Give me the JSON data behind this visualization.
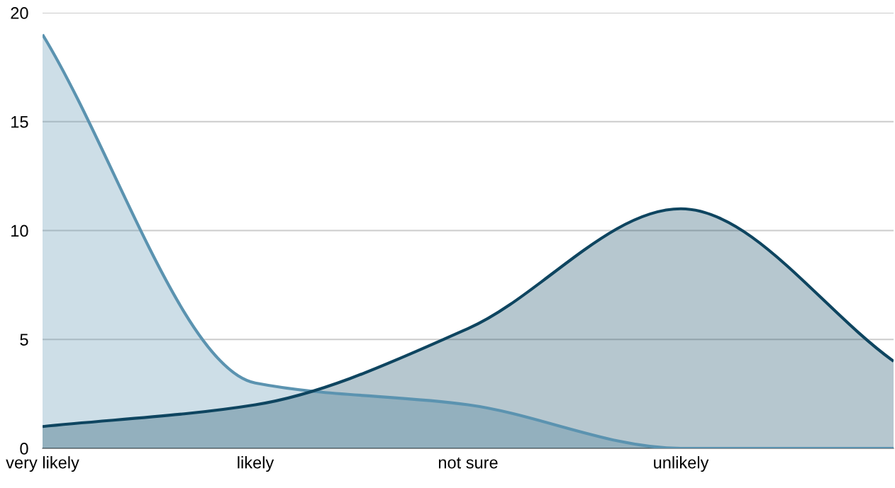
{
  "chart_data": {
    "type": "area",
    "categories": [
      "very likely",
      "likely",
      "not sure",
      "unlikely",
      null
    ],
    "series": [
      {
        "color": "#5b93b0",
        "values": [
          19,
          3,
          2,
          0,
          0
        ]
      },
      {
        "color": "#0e4560",
        "values": [
          1,
          2,
          5.5,
          11,
          4
        ]
      }
    ],
    "ylim": [
      0,
      20
    ],
    "yticks": [
      0,
      5,
      10,
      15,
      20
    ],
    "grid": "y",
    "legend": false
  }
}
